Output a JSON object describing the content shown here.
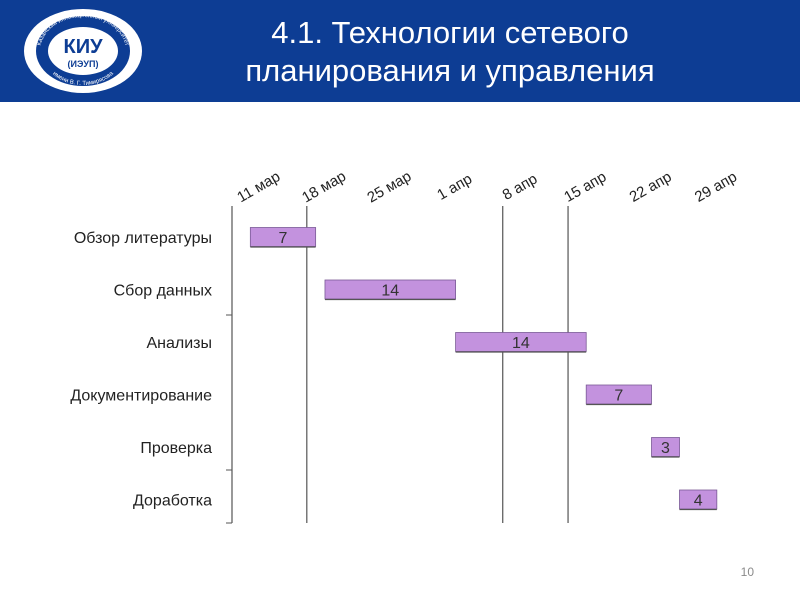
{
  "header": {
    "title_line1": "4.1. Технологии сетевого",
    "title_line2": "планирования и управления",
    "logo": {
      "arc_text": "Казанский инновационный университет имени В. Г. Тимирясова",
      "main": "КИУ",
      "sub": "(ИЭУП)"
    },
    "accent_color": "#0d3d94"
  },
  "chart_data": {
    "type": "gantt",
    "x_tick_labels": [
      "11 мар",
      "18 мар",
      "25 мар",
      "1 апр",
      "8 апр",
      "15 апр",
      "22 апр",
      "29 апр"
    ],
    "x_unit": "days",
    "x_range_days": [
      0,
      49
    ],
    "gridlines_at_days": [
      7,
      28,
      35
    ],
    "tasks": [
      {
        "label": "Обзор литературы",
        "start_day": 1,
        "duration": 7
      },
      {
        "label": "Сбор данных",
        "start_day": 9,
        "duration": 14
      },
      {
        "label": "Анализы",
        "start_day": 23,
        "duration": 14
      },
      {
        "label": "Документирование",
        "start_day": 37,
        "duration": 7
      },
      {
        "label": "Проверка",
        "start_day": 44,
        "duration": 3
      },
      {
        "label": "Доработка",
        "start_day": 47,
        "duration": 4
      }
    ],
    "bar_color": "#c392de",
    "bar_edge_color": "#7a5a96"
  },
  "footer": {
    "page_number": "10"
  }
}
